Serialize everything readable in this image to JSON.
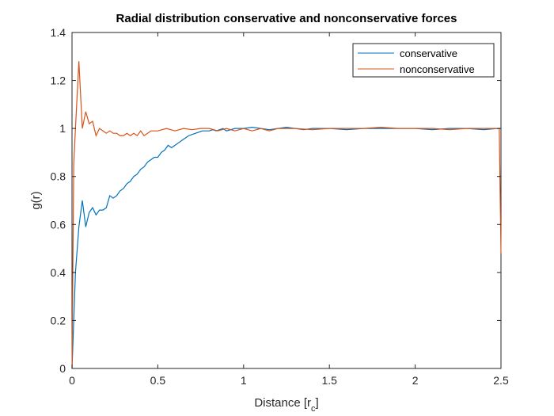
{
  "chart_data": {
    "type": "line",
    "title": "Radial distribution conservative and nonconservative forces",
    "xlabel": "Distance [r",
    "xlabel_subscript": "c",
    "xlabel_suffix": "]",
    "ylabel": "g(r)",
    "xlim": [
      0,
      2.5
    ],
    "ylim": [
      0,
      1.4
    ],
    "xticks": [
      "0",
      "0.5",
      "1",
      "1.5",
      "2",
      "2.5"
    ],
    "yticks": [
      "0",
      "0.2",
      "0.4",
      "0.6",
      "0.8",
      "1",
      "1.2",
      "1.4"
    ],
    "legend_position": "top-right",
    "grid": false,
    "series": [
      {
        "name": "conservative",
        "color": "#0072BD",
        "x": [
          0,
          0.02,
          0.04,
          0.06,
          0.08,
          0.1,
          0.12,
          0.14,
          0.16,
          0.18,
          0.2,
          0.22,
          0.24,
          0.26,
          0.28,
          0.3,
          0.32,
          0.34,
          0.36,
          0.38,
          0.4,
          0.42,
          0.44,
          0.46,
          0.48,
          0.5,
          0.52,
          0.54,
          0.56,
          0.58,
          0.6,
          0.62,
          0.64,
          0.66,
          0.68,
          0.7,
          0.72,
          0.74,
          0.76,
          0.78,
          0.8,
          0.82,
          0.84,
          0.86,
          0.88,
          0.9,
          0.95,
          1.0,
          1.05,
          1.1,
          1.15,
          1.2,
          1.25,
          1.3,
          1.35,
          1.4,
          1.5,
          1.6,
          1.7,
          1.8,
          1.9,
          2.0,
          2.1,
          2.2,
          2.3,
          2.4,
          2.48,
          2.5
        ],
        "y": [
          0,
          0.4,
          0.59,
          0.7,
          0.59,
          0.65,
          0.67,
          0.64,
          0.66,
          0.66,
          0.67,
          0.72,
          0.71,
          0.72,
          0.74,
          0.75,
          0.77,
          0.78,
          0.8,
          0.81,
          0.83,
          0.84,
          0.86,
          0.87,
          0.88,
          0.88,
          0.9,
          0.91,
          0.93,
          0.92,
          0.93,
          0.94,
          0.95,
          0.96,
          0.97,
          0.975,
          0.98,
          0.985,
          0.99,
          0.99,
          0.99,
          0.995,
          0.99,
          0.995,
          1.0,
          0.99,
          1.0,
          1.0,
          1.005,
          1.0,
          0.995,
          1.0,
          1.005,
          1.0,
          0.995,
          1.0,
          1.0,
          0.995,
          1.0,
          1.0,
          1.0,
          1.0,
          0.995,
          1.0,
          1.0,
          0.995,
          1.0,
          1.0
        ]
      },
      {
        "name": "nonconservative",
        "color": "#D95319",
        "x": [
          0,
          0.01,
          0.02,
          0.04,
          0.06,
          0.08,
          0.1,
          0.12,
          0.14,
          0.16,
          0.18,
          0.2,
          0.22,
          0.24,
          0.26,
          0.28,
          0.3,
          0.32,
          0.34,
          0.36,
          0.38,
          0.4,
          0.42,
          0.44,
          0.46,
          0.48,
          0.5,
          0.55,
          0.6,
          0.65,
          0.7,
          0.75,
          0.8,
          0.85,
          0.9,
          0.95,
          1.0,
          1.05,
          1.1,
          1.15,
          1.2,
          1.3,
          1.4,
          1.5,
          1.6,
          1.7,
          1.8,
          1.9,
          2.0,
          2.1,
          2.2,
          2.3,
          2.4,
          2.49,
          2.5
        ],
        "y": [
          0,
          0.85,
          1.0,
          1.28,
          1.0,
          1.07,
          1.02,
          1.03,
          0.97,
          1.0,
          0.99,
          0.98,
          0.99,
          0.98,
          0.98,
          0.97,
          0.97,
          0.98,
          0.97,
          0.98,
          0.97,
          0.99,
          0.97,
          0.98,
          0.99,
          0.99,
          0.99,
          1.0,
          0.99,
          1.0,
          0.995,
          1.0,
          1.0,
          0.99,
          1.0,
          0.99,
          1.0,
          0.99,
          1.0,
          0.99,
          1.0,
          1.0,
          0.995,
          1.0,
          1.0,
          1.0,
          1.005,
          1.0,
          1.0,
          1.0,
          0.995,
          1.0,
          1.0,
          1.0,
          0.48
        ]
      }
    ]
  }
}
